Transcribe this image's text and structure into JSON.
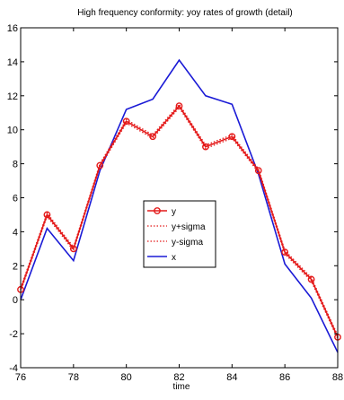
{
  "chart_data": {
    "type": "line",
    "title": "High frequency conformity: yoy rates of growth (detail)",
    "xlabel": "time",
    "ylabel": "",
    "xlim": [
      76,
      88
    ],
    "ylim": [
      -4,
      16
    ],
    "xticks": [
      "76",
      "78",
      "80",
      "82",
      "84",
      "86",
      "88"
    ],
    "yticks": [
      "-4",
      "-2",
      "0",
      "2",
      "4",
      "6",
      "8",
      "10",
      "12",
      "14",
      "16"
    ],
    "grid": false,
    "legend_position": "center",
    "x": [
      76,
      77,
      78,
      79,
      80,
      81,
      82,
      83,
      84,
      85,
      86,
      87,
      88
    ],
    "series": [
      {
        "name": "y",
        "color": "#e41a1a",
        "style": "solid",
        "marker": "circle",
        "values": [
          0.6,
          5.0,
          3.0,
          7.9,
          10.5,
          9.6,
          11.4,
          9.0,
          9.6,
          7.6,
          2.8,
          1.2,
          -2.2
        ]
      },
      {
        "name": "y+sigma",
        "color": "#e41a1a",
        "style": "dotted",
        "marker": "none",
        "values": [
          0.7,
          5.1,
          3.1,
          8.0,
          10.6,
          9.7,
          11.5,
          9.1,
          9.7,
          7.7,
          2.9,
          1.3,
          -2.1
        ]
      },
      {
        "name": "y-sigma",
        "color": "#e41a1a",
        "style": "dotted",
        "marker": "none",
        "values": [
          0.5,
          4.9,
          2.9,
          7.8,
          10.4,
          9.5,
          11.3,
          8.9,
          9.5,
          7.5,
          2.7,
          1.1,
          -2.3
        ]
      },
      {
        "name": "x",
        "color": "#1a1ad6",
        "style": "solid",
        "marker": "none",
        "values": [
          0.0,
          4.2,
          2.3,
          7.6,
          11.2,
          11.8,
          14.1,
          12.0,
          11.5,
          7.4,
          2.1,
          0.1,
          -3.1
        ]
      }
    ]
  }
}
